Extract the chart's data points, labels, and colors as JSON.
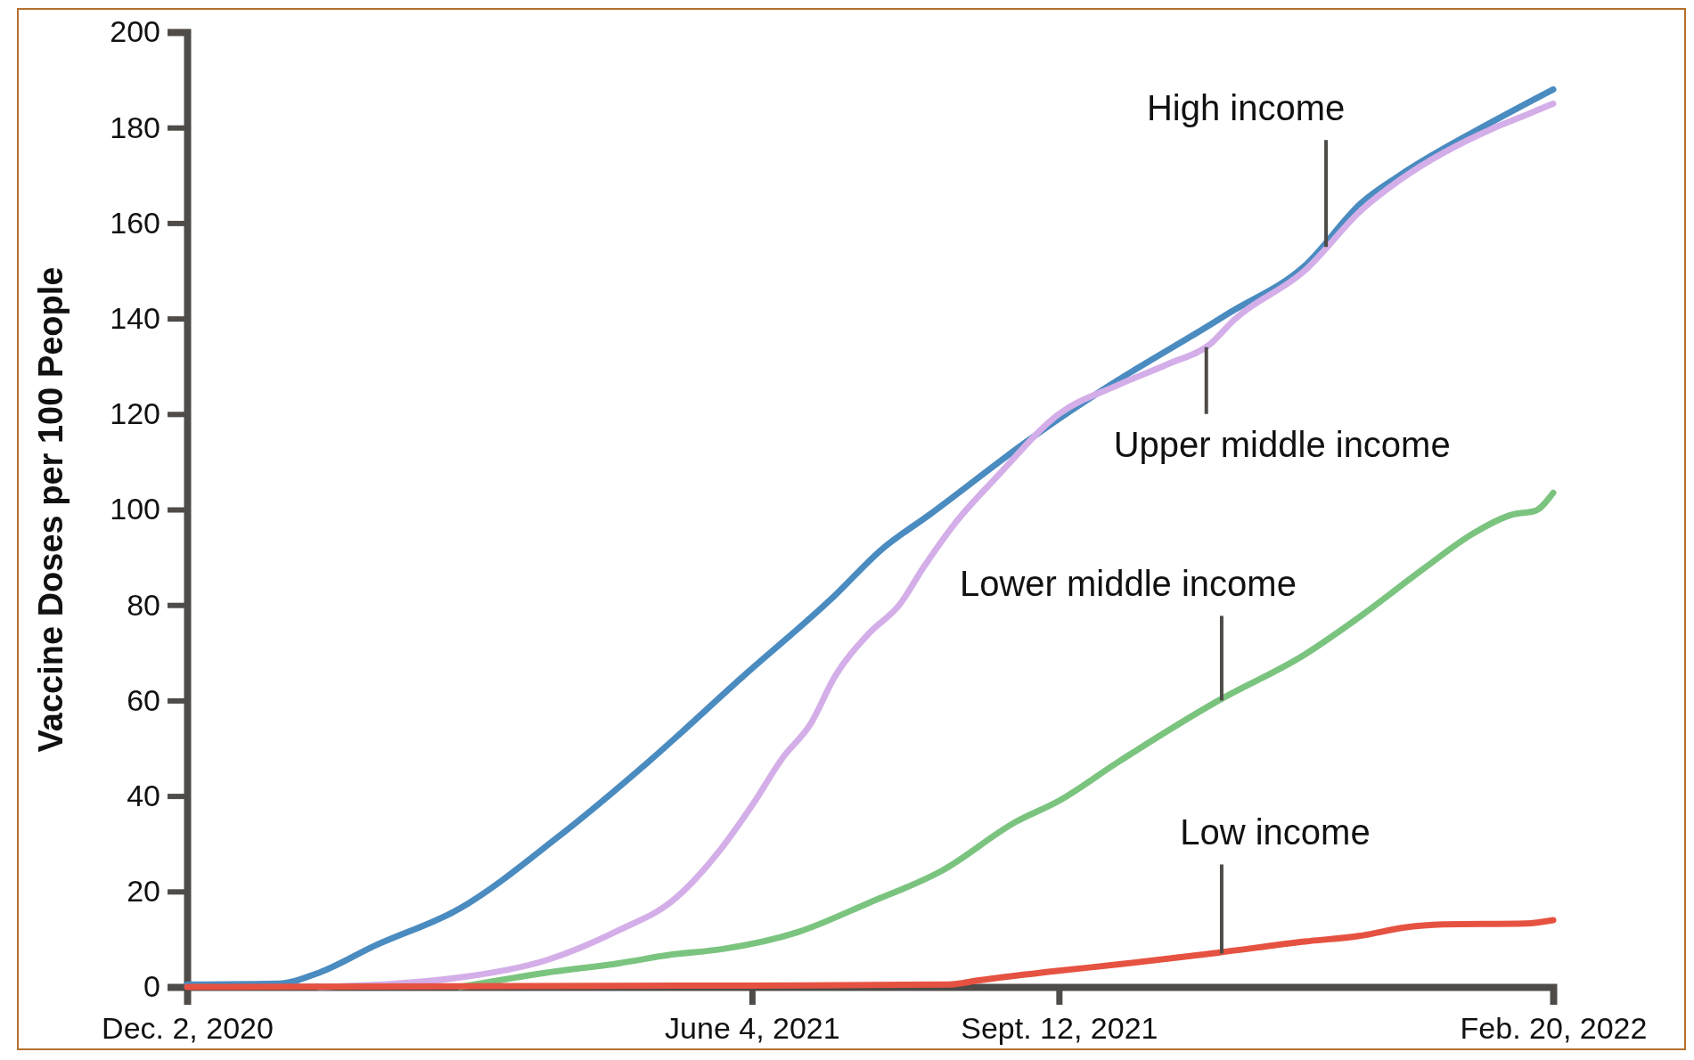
{
  "chart_data": {
    "type": "line",
    "ylabel": "Vaccine Doses per 100 People",
    "xlim": [
      "2020-12-02",
      "2022-02-20"
    ],
    "xticks": [
      {
        "value": "2020-12-02",
        "label": "Dec. 2, 2020"
      },
      {
        "value": "2021-06-04",
        "label": "June 4, 2021"
      },
      {
        "value": "2021-09-12",
        "label": "Sept. 12, 2021"
      },
      {
        "value": "2022-02-20",
        "label": "Feb. 20, 2022"
      }
    ],
    "ylim": [
      0,
      200
    ],
    "yticks": [
      0,
      20,
      40,
      60,
      80,
      100,
      120,
      140,
      160,
      180,
      200
    ],
    "grid": false,
    "marker": "none",
    "line_style": "solid",
    "series": [
      {
        "color": "#4a8bc0",
        "x": [
          "2020-12-02",
          "2021-01-01",
          "2021-01-14",
          "2021-02-01",
          "2021-03-01",
          "2021-04-01",
          "2021-05-01",
          "2021-06-01",
          "2021-07-01",
          "2021-07-16",
          "2021-08-01",
          "2021-09-01",
          "2021-09-12",
          "2021-10-01",
          "2021-11-01",
          "2021-11-06",
          "2021-12-01",
          "2021-12-20",
          "2022-01-01",
          "2022-02-01",
          "2022-02-20"
        ],
        "values": [
          0.5,
          0.7,
          3,
          8.6,
          16.5,
          31,
          47,
          65,
          82,
          91.5,
          99,
          114,
          119,
          127,
          139,
          141,
          151,
          164.5,
          170,
          181.5,
          188
        ]
      },
      {
        "color": "#d4aee8",
        "x": [
          "2021-01-14",
          "2021-03-01",
          "2021-03-29",
          "2021-04-22",
          "2021-05-09",
          "2021-05-25",
          "2021-06-04",
          "2021-06-14",
          "2021-06-23",
          "2021-07-01",
          "2021-07-12",
          "2021-07-22",
          "2021-07-30",
          "2021-08-09",
          "2021-08-23",
          "2021-09-12",
          "2021-10-01",
          "2021-10-18",
          "2021-10-31",
          "2021-11-08",
          "2021-12-01",
          "2021-12-20",
          "2022-01-01",
          "2022-02-01",
          "2022-02-11",
          "2022-02-20"
        ],
        "values": [
          0,
          2,
          5.6,
          12,
          18,
          29,
          38,
          48,
          55,
          65,
          74,
          80,
          88,
          97,
          107,
          120,
          126,
          130.6,
          134.5,
          139.7,
          150,
          163,
          169,
          180,
          182.6,
          185
        ]
      },
      {
        "color": "#7bc47f",
        "x": [
          "2021-03-01",
          "2021-03-29",
          "2021-04-22",
          "2021-05-09",
          "2021-05-25",
          "2021-06-19",
          "2021-07-12",
          "2021-08-05",
          "2021-08-29",
          "2021-09-12",
          "2021-10-01",
          "2021-11-03",
          "2021-12-01",
          "2021-12-20",
          "2022-01-09",
          "2022-01-25",
          "2022-02-07",
          "2022-02-14",
          "2022-02-20"
        ],
        "values": [
          0,
          3,
          5,
          6.8,
          7.9,
          11.5,
          17.6,
          24.4,
          34.6,
          39,
          47,
          60,
          69.6,
          78,
          87.7,
          95,
          99,
          99.7,
          103.5
        ]
      },
      {
        "color": "#e65241",
        "x": [
          "2020-12-02",
          "2021-06-04",
          "2021-08-07",
          "2021-08-17",
          "2021-09-12",
          "2021-10-01",
          "2021-11-03",
          "2021-12-01",
          "2021-12-20",
          "2022-01-02",
          "2022-01-15",
          "2022-02-11",
          "2022-02-20"
        ],
        "values": [
          0,
          0.3,
          0.5,
          1.4,
          3.4,
          4.7,
          7.2,
          9.5,
          10.8,
          12.4,
          13.1,
          13.3,
          14
        ]
      }
    ],
    "annotations": [
      {
        "text": "High income",
        "x": "2021-12-08",
        "y": 155
      },
      {
        "text": "Upper middle income",
        "x": "2021-10-30",
        "y": 134
      },
      {
        "text": "Lower middle income",
        "x": "2021-11-04",
        "y": 60
      },
      {
        "text": "Low income",
        "x": "2021-11-04",
        "y": 7
      }
    ]
  }
}
